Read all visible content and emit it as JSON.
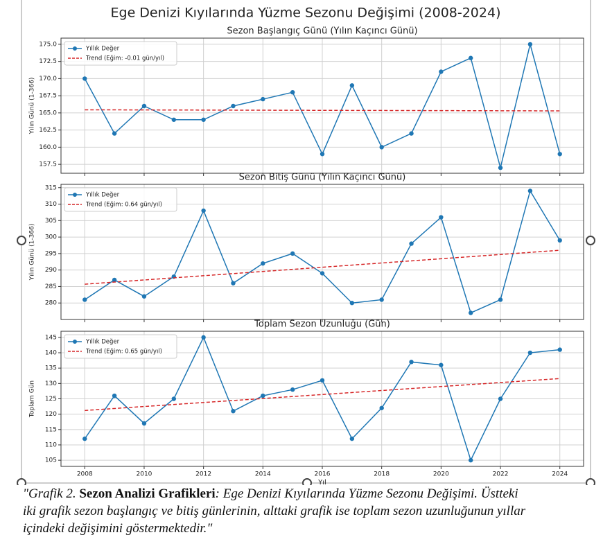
{
  "figure_title": "Ege Denizi Kıyılarında Yüzme Sezonu Değişimi (2008-2024)",
  "chart_data": [
    {
      "type": "line",
      "title": "Sezon Başlangıç Günü (Yılın Kaçıncı Günü)",
      "ylabel": "Yılın Günü (1-366)",
      "xlim": [
        2007.2,
        2024.8
      ],
      "xticks": [
        2008,
        2010,
        2012,
        2014,
        2016,
        2018,
        2020,
        2022,
        2024
      ],
      "ylim": [
        156.2,
        175.9
      ],
      "yticks": [
        157.5,
        {
          "value": 160,
          "label": "160.0"
        },
        162.5,
        {
          "value": 165,
          "label": "165.0"
        },
        167.5,
        {
          "value": 170,
          "label": "170.0"
        },
        172.5,
        {
          "value": 175,
          "label": "175.0"
        }
      ],
      "grid": true,
      "legend": "upper left",
      "series": [
        {
          "name": "Yıllık Değer",
          "color": "#1f77b4",
          "marker": "o",
          "x": [
            2008,
            2009,
            2010,
            2011,
            2012,
            2013,
            2014,
            2015,
            2016,
            2017,
            2018,
            2019,
            2020,
            2021,
            2022,
            2023,
            2024
          ],
          "values": [
            170,
            162,
            166,
            164,
            164,
            166,
            167,
            168,
            159,
            169,
            160,
            162,
            171,
            173,
            157,
            175,
            159
          ]
        },
        {
          "name": "Trend (Eğim: -0.01 gün/yıl)",
          "color": "#d62728",
          "linestyle": "dashed",
          "x": [
            2008,
            2024
          ],
          "values": [
            165.45,
            165.29
          ]
        }
      ]
    },
    {
      "type": "line",
      "title": "Sezon Bitiş Günü (Yılın Kaçıncı Günü)",
      "ylabel": "Yılın Günü (1-366)",
      "xlim": [
        2007.2,
        2024.8
      ],
      "xticks": [
        2008,
        2010,
        2012,
        2014,
        2016,
        2018,
        2020,
        2022,
        2024
      ],
      "ylim": [
        275.0,
        316.0
      ],
      "yticks": [
        280,
        285,
        290,
        295,
        300,
        305,
        310,
        315
      ],
      "grid": true,
      "legend": "upper left",
      "series": [
        {
          "name": "Yıllık Değer",
          "color": "#1f77b4",
          "marker": "o",
          "x": [
            2008,
            2009,
            2010,
            2011,
            2012,
            2013,
            2014,
            2015,
            2016,
            2017,
            2018,
            2019,
            2020,
            2021,
            2022,
            2023,
            2024
          ],
          "values": [
            281,
            287,
            282,
            288,
            308,
            286,
            292,
            295,
            289,
            280,
            281,
            298,
            306,
            277,
            281,
            314,
            299
          ]
        },
        {
          "name": "Trend (Eğim: 0.64 gün/yıl)",
          "color": "#d62728",
          "linestyle": "dashed",
          "x": [
            2008,
            2024
          ],
          "values": [
            285.7,
            296.0
          ]
        }
      ]
    },
    {
      "type": "line",
      "title": "Toplam Sezon Uzunluğu (Gün)",
      "ylabel": "Toplam Gün",
      "xlabel": "Yıl",
      "xlim": [
        2007.2,
        2024.8
      ],
      "xticks": [
        2008,
        2010,
        2012,
        2014,
        2016,
        2018,
        2020,
        2022,
        2024
      ],
      "ylim": [
        103.0,
        147.0
      ],
      "yticks": [
        105,
        110,
        115,
        120,
        125,
        130,
        135,
        140,
        145
      ],
      "grid": true,
      "legend": "upper left",
      "series": [
        {
          "name": "Yıllık Değer",
          "color": "#1f77b4",
          "marker": "o",
          "x": [
            2008,
            2009,
            2010,
            2011,
            2012,
            2013,
            2014,
            2015,
            2016,
            2017,
            2018,
            2019,
            2020,
            2021,
            2022,
            2023,
            2024
          ],
          "values": [
            112,
            126,
            117,
            125,
            145,
            121,
            126,
            128,
            131,
            112,
            122,
            137,
            136,
            105,
            125,
            140,
            141
          ]
        },
        {
          "name": "Trend (Eğim: 0.65 gün/yıl)",
          "color": "#d62728",
          "linestyle": "dashed",
          "x": [
            2008,
            2024
          ],
          "values": [
            121.2,
            131.6
          ]
        }
      ]
    }
  ],
  "caption": {
    "prefix": "\"Grafik 2.",
    "bold_title": "Sezon Analizi Grafikleri",
    "lines": [
      ": Ege Denizi Kıyılarında Yüzme Sezonu Değişimi. Üstteki",
      "iki grafik sezon başlangıç ve bitiş günlerinin, alttaki grafik ise toplam sezon uzunluğunun yıllar",
      "içindeki değişimini göstermektedir.\""
    ]
  }
}
